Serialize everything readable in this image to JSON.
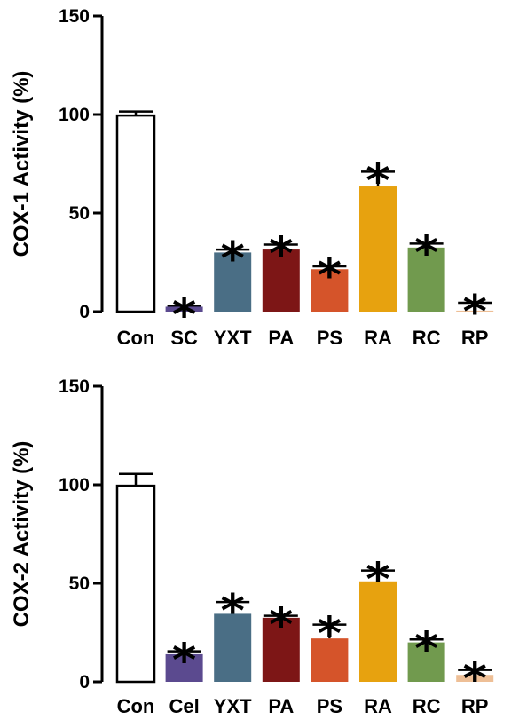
{
  "chart_data": [
    {
      "type": "bar",
      "ylabel": "COX-1 Activity (%)",
      "ylim": [
        0,
        150
      ],
      "yticks": [
        0,
        50,
        100,
        150
      ],
      "categories": [
        "Con",
        "SC",
        "YXT",
        "PA",
        "PS",
        "RA",
        "RC",
        "RP"
      ],
      "values": [
        99.5,
        2.5,
        30,
        31.5,
        21.5,
        63.5,
        32.5,
        0.5
      ],
      "errors": [
        2,
        0.5,
        1.5,
        2.5,
        1.5,
        7.5,
        2,
        4
      ],
      "significant": [
        false,
        true,
        true,
        true,
        true,
        true,
        true,
        true
      ],
      "significance_marker": "*",
      "colors": [
        "#ffffff",
        "#5b4a8f",
        "#4a6e85",
        "#7d1616",
        "#d5542a",
        "#e7a20f",
        "#719a4e",
        "#eebf96"
      ]
    },
    {
      "type": "bar",
      "ylabel": "COX-2 Activity (%)",
      "ylim": [
        0,
        150
      ],
      "yticks": [
        0,
        50,
        100,
        150
      ],
      "categories": [
        "Con",
        "Cel",
        "YXT",
        "PA",
        "PS",
        "RA",
        "RC",
        "RP"
      ],
      "values": [
        99.5,
        14,
        34.5,
        32.5,
        22,
        51,
        20,
        3.5
      ],
      "errors": [
        6,
        1.5,
        6,
        1,
        7,
        5.5,
        1.5,
        2.5
      ],
      "significant": [
        false,
        true,
        true,
        true,
        true,
        true,
        true,
        true
      ],
      "significance_marker": "*",
      "colors": [
        "#ffffff",
        "#5b4a8f",
        "#4a6e85",
        "#7d1616",
        "#d5542a",
        "#e7a20f",
        "#719a4e",
        "#eebf96"
      ]
    }
  ]
}
